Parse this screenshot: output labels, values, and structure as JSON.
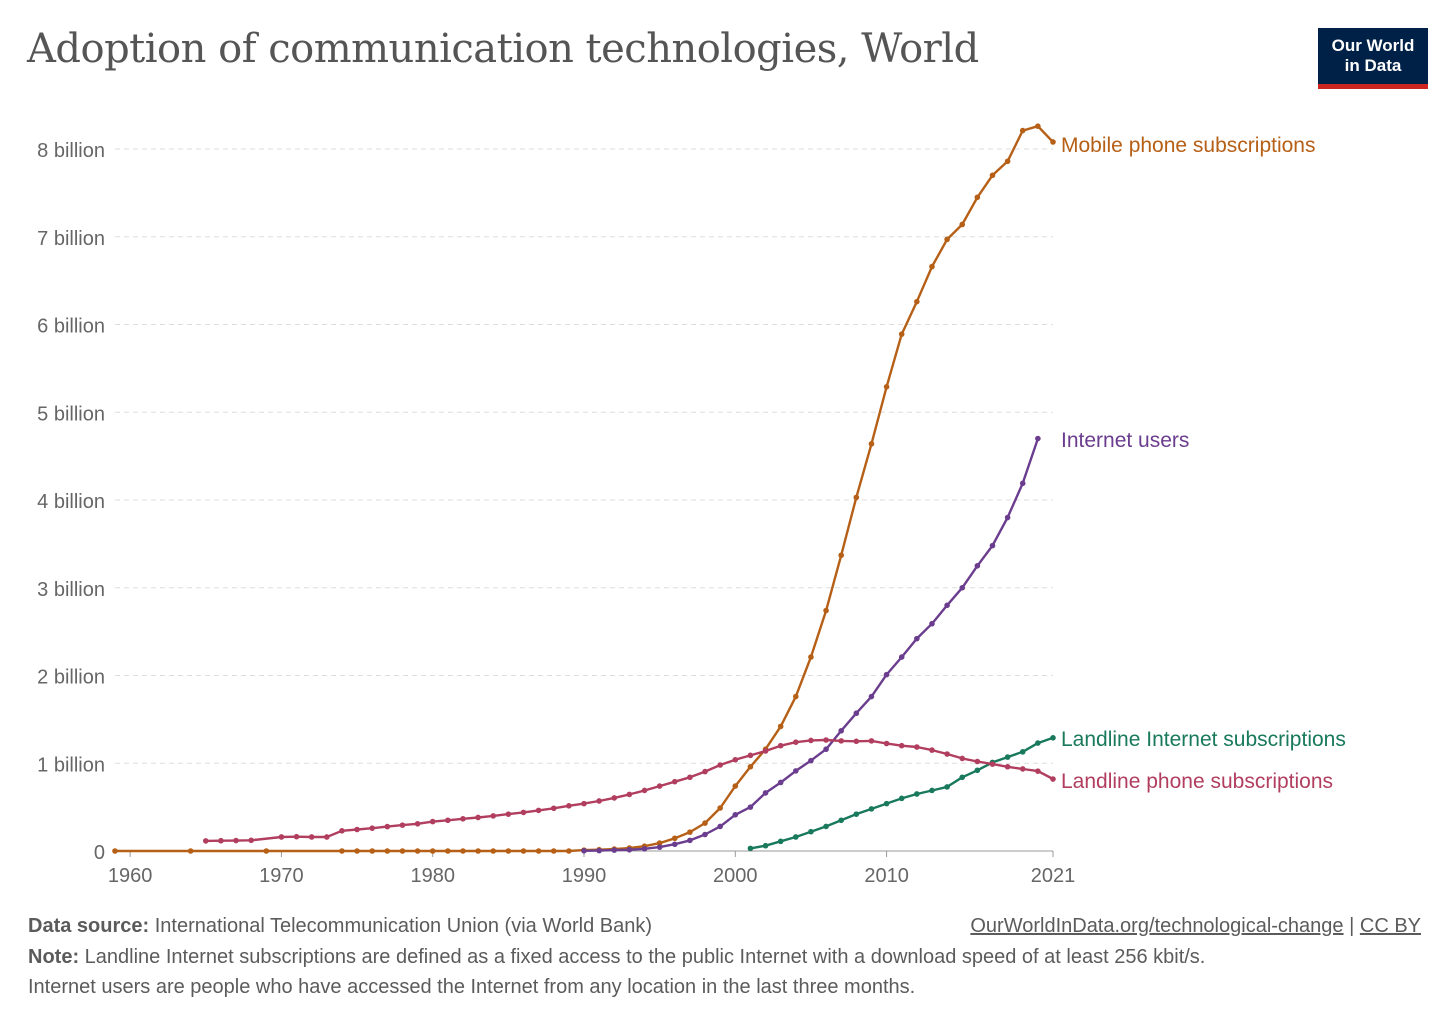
{
  "title": "Adoption of communication technologies, World",
  "logo": {
    "line1": "Our World",
    "line2": "in Data"
  },
  "footer": {
    "source_label": "Data source:",
    "source_text": "International Telecommunication Union (via World Bank)",
    "url": "OurWorldInData.org/technological-change",
    "separator": "|",
    "license": "CC BY",
    "note_label": "Note:",
    "note_line1": "Landline Internet subscriptions are defined as a fixed access to the public Internet with a download speed of at least 256 kbit/s.",
    "note_line2": "Internet users are people who have accessed the Internet from any location in the last three months."
  },
  "chart_data": {
    "type": "line",
    "title": "Adoption of communication technologies, World",
    "xlim": [
      1959,
      2021
    ],
    "ylim": [
      0,
      8000000000
    ],
    "x_ticks": [
      1960,
      1970,
      1980,
      1990,
      2000,
      2010,
      2021
    ],
    "y_ticks": [
      {
        "value": 0,
        "label": "0"
      },
      {
        "value": 1000000000,
        "label": "1 billion"
      },
      {
        "value": 2000000000,
        "label": "2 billion"
      },
      {
        "value": 3000000000,
        "label": "3 billion"
      },
      {
        "value": 4000000000,
        "label": "4 billion"
      },
      {
        "value": 5000000000,
        "label": "5 billion"
      },
      {
        "value": 6000000000,
        "label": "6 billion"
      },
      {
        "value": 7000000000,
        "label": "7 billion"
      },
      {
        "value": 8000000000,
        "label": "8 billion"
      }
    ],
    "grid": true,
    "legend": "line-end labels",
    "series": [
      {
        "name": "Mobile phone subscriptions",
        "color": "#b65f16",
        "points": [
          [
            1959,
            0
          ],
          [
            1964,
            0
          ],
          [
            1969,
            0
          ],
          [
            1974,
            0
          ],
          [
            1975,
            0
          ],
          [
            1976,
            0
          ],
          [
            1977,
            0
          ],
          [
            1978,
            0
          ],
          [
            1979,
            0
          ],
          [
            1980,
            0
          ],
          [
            1981,
            0
          ],
          [
            1982,
            0
          ],
          [
            1983,
            0
          ],
          [
            1984,
            0
          ],
          [
            1985,
            0
          ],
          [
            1986,
            0
          ],
          [
            1987,
            0
          ],
          [
            1988,
            0
          ],
          [
            1989,
            0
          ],
          [
            1990,
            10000000
          ],
          [
            1991,
            15000000
          ],
          [
            1992,
            22000000
          ],
          [
            1993,
            33000000
          ],
          [
            1994,
            55000000
          ],
          [
            1995,
            90000000
          ],
          [
            1996,
            145000000
          ],
          [
            1997,
            215000000
          ],
          [
            1998,
            318000000
          ],
          [
            1999,
            490000000
          ],
          [
            2000,
            740000000
          ],
          [
            2001,
            960000000
          ],
          [
            2002,
            1160000000
          ],
          [
            2003,
            1420000000
          ],
          [
            2004,
            1760000000
          ],
          [
            2005,
            2210000000
          ],
          [
            2006,
            2740000000
          ],
          [
            2007,
            3370000000
          ],
          [
            2008,
            4030000000
          ],
          [
            2009,
            4640000000
          ],
          [
            2010,
            5290000000
          ],
          [
            2011,
            5890000000
          ],
          [
            2012,
            6260000000
          ],
          [
            2013,
            6660000000
          ],
          [
            2014,
            6970000000
          ],
          [
            2015,
            7140000000
          ],
          [
            2016,
            7450000000
          ],
          [
            2017,
            7700000000
          ],
          [
            2018,
            7860000000
          ],
          [
            2019,
            8210000000
          ],
          [
            2020,
            8260000000
          ],
          [
            2021,
            8080000000
          ]
        ]
      },
      {
        "name": "Internet users",
        "color": "#6b3d8f",
        "points": [
          [
            1990,
            2600000
          ],
          [
            1991,
            4400000
          ],
          [
            1992,
            10000000
          ],
          [
            1993,
            14000000
          ],
          [
            1994,
            25000000
          ],
          [
            1995,
            44000000
          ],
          [
            1996,
            77000000
          ],
          [
            1997,
            121000000
          ],
          [
            1998,
            188000000
          ],
          [
            1999,
            280000000
          ],
          [
            2000,
            413000000
          ],
          [
            2001,
            500000000
          ],
          [
            2002,
            662000000
          ],
          [
            2003,
            781000000
          ],
          [
            2004,
            913000000
          ],
          [
            2005,
            1030000000
          ],
          [
            2006,
            1160000000
          ],
          [
            2007,
            1370000000
          ],
          [
            2008,
            1570000000
          ],
          [
            2009,
            1760000000
          ],
          [
            2010,
            2010000000
          ],
          [
            2011,
            2210000000
          ],
          [
            2012,
            2420000000
          ],
          [
            2013,
            2590000000
          ],
          [
            2014,
            2800000000
          ],
          [
            2015,
            3000000000
          ],
          [
            2016,
            3250000000
          ],
          [
            2017,
            3480000000
          ],
          [
            2018,
            3800000000
          ],
          [
            2019,
            4190000000
          ],
          [
            2020,
            4700000000
          ]
        ]
      },
      {
        "name": "Landline Internet subscriptions",
        "color": "#18795c",
        "points": [
          [
            2001,
            30000000
          ],
          [
            2002,
            60000000
          ],
          [
            2003,
            110000000
          ],
          [
            2004,
            160000000
          ],
          [
            2005,
            220000000
          ],
          [
            2006,
            280000000
          ],
          [
            2007,
            350000000
          ],
          [
            2008,
            420000000
          ],
          [
            2009,
            480000000
          ],
          [
            2010,
            540000000
          ],
          [
            2011,
            600000000
          ],
          [
            2012,
            650000000
          ],
          [
            2013,
            690000000
          ],
          [
            2014,
            730000000
          ],
          [
            2015,
            840000000
          ],
          [
            2016,
            920000000
          ],
          [
            2017,
            1010000000
          ],
          [
            2018,
            1070000000
          ],
          [
            2019,
            1130000000
          ],
          [
            2020,
            1230000000
          ],
          [
            2021,
            1290000000
          ]
        ]
      },
      {
        "name": "Landline phone subscriptions",
        "color": "#b13e5f",
        "points": [
          [
            1965,
            115000000
          ],
          [
            1966,
            117000000
          ],
          [
            1967,
            119000000
          ],
          [
            1968,
            122000000
          ],
          [
            1970,
            160000000
          ],
          [
            1971,
            163000000
          ],
          [
            1972,
            160000000
          ],
          [
            1973,
            160000000
          ],
          [
            1974,
            230000000
          ],
          [
            1975,
            245000000
          ],
          [
            1976,
            260000000
          ],
          [
            1977,
            278000000
          ],
          [
            1978,
            295000000
          ],
          [
            1979,
            310000000
          ],
          [
            1980,
            335000000
          ],
          [
            1981,
            350000000
          ],
          [
            1982,
            367000000
          ],
          [
            1983,
            382000000
          ],
          [
            1984,
            400000000
          ],
          [
            1985,
            420000000
          ],
          [
            1986,
            440000000
          ],
          [
            1987,
            463000000
          ],
          [
            1988,
            487000000
          ],
          [
            1989,
            515000000
          ],
          [
            1990,
            540000000
          ],
          [
            1991,
            570000000
          ],
          [
            1992,
            605000000
          ],
          [
            1993,
            645000000
          ],
          [
            1994,
            690000000
          ],
          [
            1995,
            740000000
          ],
          [
            1996,
            790000000
          ],
          [
            1997,
            840000000
          ],
          [
            1998,
            905000000
          ],
          [
            1999,
            980000000
          ],
          [
            2000,
            1040000000
          ],
          [
            2001,
            1090000000
          ],
          [
            2002,
            1140000000
          ],
          [
            2003,
            1200000000
          ],
          [
            2004,
            1240000000
          ],
          [
            2005,
            1260000000
          ],
          [
            2006,
            1265000000
          ],
          [
            2007,
            1255000000
          ],
          [
            2008,
            1250000000
          ],
          [
            2009,
            1255000000
          ],
          [
            2010,
            1225000000
          ],
          [
            2011,
            1200000000
          ],
          [
            2012,
            1185000000
          ],
          [
            2013,
            1150000000
          ],
          [
            2014,
            1105000000
          ],
          [
            2015,
            1055000000
          ],
          [
            2016,
            1020000000
          ],
          [
            2017,
            990000000
          ],
          [
            2018,
            960000000
          ],
          [
            2019,
            935000000
          ],
          [
            2020,
            910000000
          ],
          [
            2021,
            820000000
          ]
        ]
      }
    ]
  }
}
